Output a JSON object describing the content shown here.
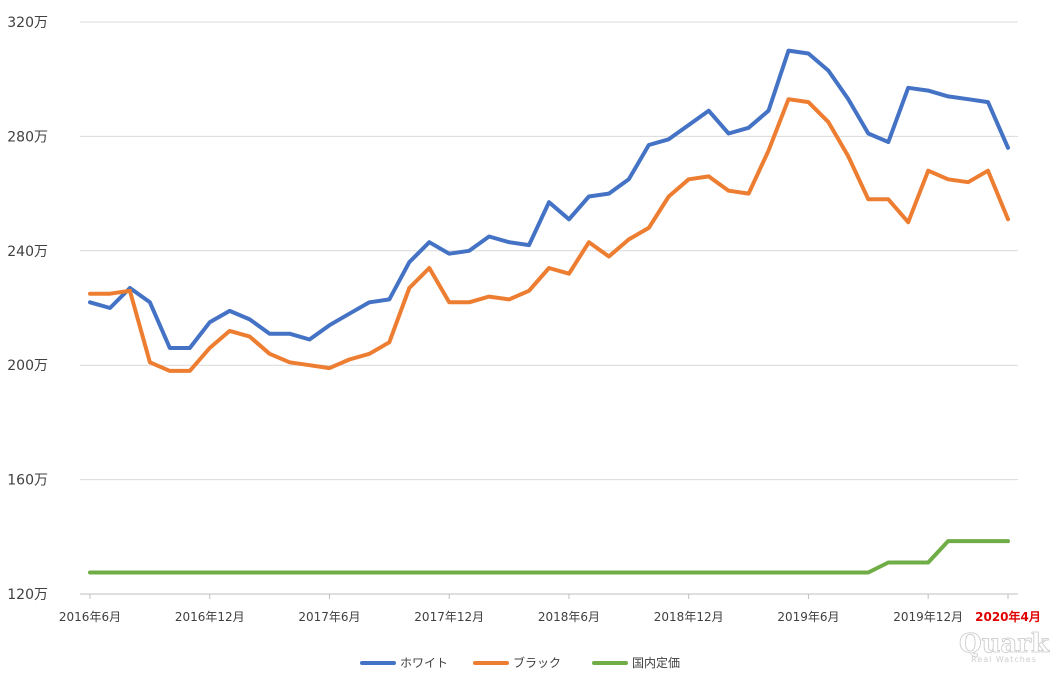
{
  "chart_data": {
    "type": "line",
    "title": "",
    "xlabel": "",
    "ylabel": "",
    "ylim": [
      120,
      320
    ],
    "y_ticks": [
      {
        "value": 120,
        "label": "120万"
      },
      {
        "value": 160,
        "label": "160万"
      },
      {
        "value": 200,
        "label": "200万"
      },
      {
        "value": 240,
        "label": "240万"
      },
      {
        "value": 280,
        "label": "280万"
      },
      {
        "value": 320,
        "label": "320万"
      }
    ],
    "x_ticks": [
      {
        "index": 0,
        "label": "2016年6月"
      },
      {
        "index": 6,
        "label": "2016年12月"
      },
      {
        "index": 12,
        "label": "2017年6月"
      },
      {
        "index": 18,
        "label": "2017年12月"
      },
      {
        "index": 24,
        "label": "2018年6月"
      },
      {
        "index": 30,
        "label": "2018年12月"
      },
      {
        "index": 36,
        "label": "2019年6月"
      },
      {
        "index": 42,
        "label": "2019年12月"
      },
      {
        "index": 46,
        "label": "2020年4月",
        "highlight": true
      }
    ],
    "grid": "horizontal",
    "legend_position": "bottom",
    "series": [
      {
        "name": "ホワイト",
        "color": "#4472c4",
        "values": [
          222,
          220,
          227,
          222,
          206,
          206,
          215,
          219,
          216,
          211,
          211,
          209,
          214,
          218,
          222,
          223,
          236,
          243,
          239,
          240,
          245,
          243,
          242,
          257,
          251,
          259,
          260,
          265,
          277,
          279,
          284,
          289,
          281,
          283,
          289,
          310,
          309,
          303,
          293,
          281,
          278,
          297,
          296,
          294,
          293,
          292,
          276
        ]
      },
      {
        "name": "ブラック",
        "color": "#ed7d31",
        "values": [
          225,
          225,
          226,
          201,
          198,
          198,
          206,
          212,
          210,
          204,
          201,
          200,
          199,
          202,
          204,
          208,
          227,
          234,
          222,
          222,
          224,
          223,
          226,
          234,
          232,
          243,
          238,
          244,
          248,
          259,
          265,
          266,
          261,
          260,
          275,
          293,
          292,
          285,
          273,
          258,
          258,
          250,
          268,
          265,
          264,
          268,
          251
        ]
      },
      {
        "name": "国内定価",
        "color": "#70ad47",
        "values": [
          127.5,
          127.5,
          127.5,
          127.5,
          127.5,
          127.5,
          127.5,
          127.5,
          127.5,
          127.5,
          127.5,
          127.5,
          127.5,
          127.5,
          127.5,
          127.5,
          127.5,
          127.5,
          127.5,
          127.5,
          127.5,
          127.5,
          127.5,
          127.5,
          127.5,
          127.5,
          127.5,
          127.5,
          127.5,
          127.5,
          127.5,
          127.5,
          127.5,
          127.5,
          127.5,
          127.5,
          127.5,
          127.5,
          127.5,
          127.5,
          131,
          131,
          131,
          138.5,
          138.5,
          138.5,
          138.5
        ]
      }
    ]
  },
  "watermark": {
    "brand": "Quark",
    "tagline": "Real Watches"
  }
}
